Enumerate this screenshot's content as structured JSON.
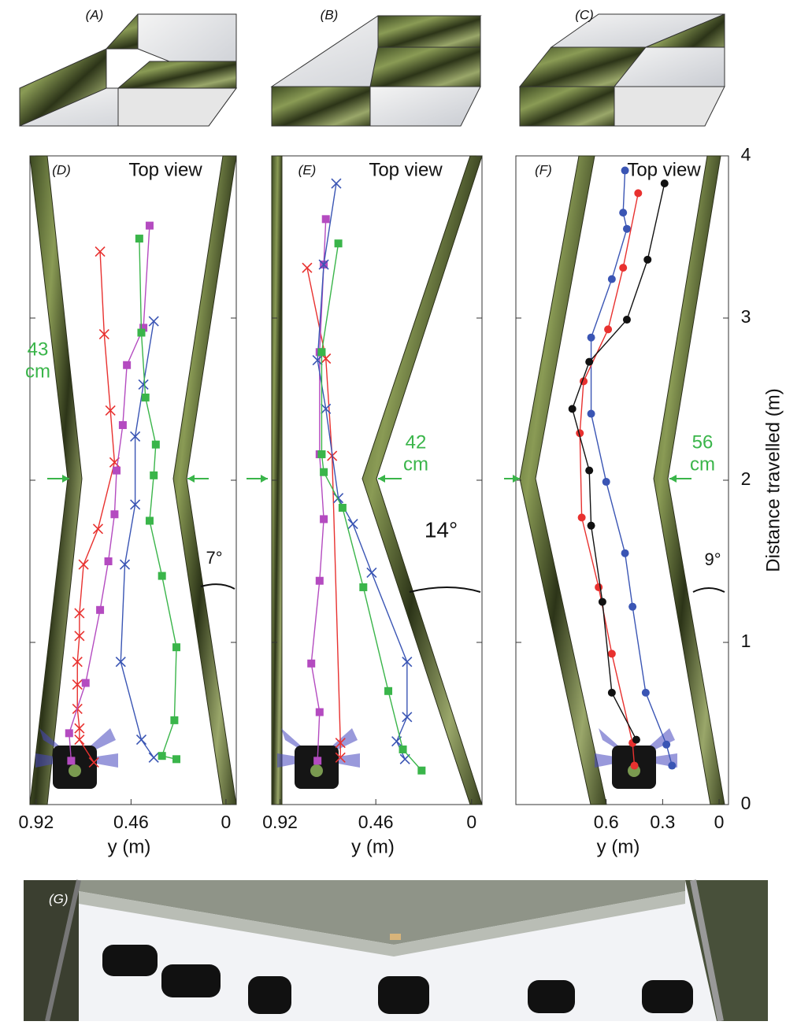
{
  "figure": {
    "panel_labels": [
      "(A)",
      "(B)",
      "(C)"
    ],
    "photo_label": "(G)"
  },
  "chart_data": [
    {
      "type": "line",
      "panel_label": "(D)",
      "annotation": "Top view",
      "width_label": [
        "43",
        "cm"
      ],
      "angle_label": "7°",
      "xlabel": "y (m)",
      "xlim": [
        0.95,
        -0.05
      ],
      "xticks": [
        0.92,
        0.46,
        0
      ],
      "ylim": [
        0,
        4
      ],
      "series": [
        {
          "color": "#e8312f",
          "marker": "x",
          "x": [
            0.61,
            0.59,
            0.56,
            0.54,
            0.62,
            0.69,
            0.71,
            0.71,
            0.72,
            0.72,
            0.72,
            0.71,
            0.71,
            0.64
          ],
          "y": [
            3.41,
            2.9,
            2.43,
            2.11,
            1.7,
            1.48,
            1.18,
            1.04,
            0.88,
            0.74,
            0.59,
            0.47,
            0.4,
            0.26
          ]
        },
        {
          "color": "#b44bc0",
          "marker": "square",
          "x": [
            0.37,
            0.4,
            0.48,
            0.5,
            0.53,
            0.54,
            0.57,
            0.61,
            0.68,
            0.76,
            0.75
          ],
          "y": [
            3.57,
            2.94,
            2.71,
            2.34,
            2.06,
            1.79,
            1.5,
            1.2,
            0.75,
            0.44,
            0.27
          ]
        },
        {
          "color": "#3a55b4",
          "marker": "x",
          "x": [
            0.35,
            0.4,
            0.44,
            0.44,
            0.49,
            0.51,
            0.41,
            0.35
          ],
          "y": [
            2.98,
            2.59,
            2.27,
            1.85,
            1.48,
            0.88,
            0.4,
            0.29
          ]
        },
        {
          "color": "#3ab54a",
          "marker": "square",
          "x": [
            0.42,
            0.41,
            0.39,
            0.34,
            0.35,
            0.37,
            0.31,
            0.24,
            0.25,
            0.31,
            0.24
          ],
          "y": [
            3.49,
            2.91,
            2.51,
            2.22,
            2.03,
            1.75,
            1.41,
            0.97,
            0.52,
            0.3,
            0.28
          ]
        }
      ]
    },
    {
      "type": "line",
      "panel_label": "(E)",
      "annotation": "Top view",
      "width_label": [
        "42",
        "cm"
      ],
      "angle_label": "14°",
      "xlabel": "y (m)",
      "xlim": [
        0.96,
        -0.05
      ],
      "xticks": [
        0.92,
        0.46,
        0
      ],
      "ylim": [
        0,
        4
      ],
      "series": [
        {
          "color": "#e8312f",
          "marker": "x",
          "x": [
            0.79,
            0.7,
            0.67,
            0.63,
            0.63
          ],
          "y": [
            3.31,
            2.75,
            2.15,
            0.38,
            0.29
          ]
        },
        {
          "color": "#b44bc0",
          "marker": "square",
          "x": [
            0.7,
            0.71,
            0.73,
            0.73,
            0.71,
            0.73,
            0.77,
            0.73,
            0.74
          ],
          "y": [
            3.61,
            3.33,
            2.79,
            2.16,
            1.76,
            1.38,
            0.87,
            0.57,
            0.27
          ]
        },
        {
          "color": "#3a55b4",
          "marker": "x",
          "x": [
            0.65,
            0.71,
            0.74,
            0.7,
            0.64,
            0.57,
            0.48,
            0.31,
            0.31,
            0.36,
            0.32
          ],
          "y": [
            3.83,
            3.33,
            2.74,
            2.44,
            1.89,
            1.73,
            1.43,
            0.88,
            0.54,
            0.39,
            0.28
          ]
        },
        {
          "color": "#3ab54a",
          "marker": "square",
          "x": [
            0.64,
            0.72,
            0.72,
            0.71,
            0.62,
            0.52,
            0.4,
            0.33,
            0.24
          ],
          "y": [
            3.46,
            2.79,
            2.16,
            2.05,
            1.83,
            1.34,
            0.7,
            0.34,
            0.21
          ]
        }
      ]
    },
    {
      "type": "line",
      "panel_label": "(F)",
      "annotation": "Top view",
      "width_label": [
        "56",
        "cm"
      ],
      "angle_label": "9°",
      "xlabel": "y (m)",
      "ylabel": "Distance travelled (m)",
      "xlim": [
        1.08,
        -0.05
      ],
      "xticks": [
        0.6,
        0.3,
        0
      ],
      "ylim": [
        0,
        4
      ],
      "yticks": [
        0,
        1,
        2,
        3,
        4
      ],
      "series": [
        {
          "color": "#3a55b4",
          "marker": "circle",
          "x": [
            0.5,
            0.51,
            0.49,
            0.57,
            0.68,
            0.68,
            0.6,
            0.5,
            0.46,
            0.39,
            0.28,
            0.25
          ],
          "y": [
            3.91,
            3.65,
            3.55,
            3.24,
            2.88,
            2.41,
            1.99,
            1.55,
            1.22,
            0.69,
            0.37,
            0.24
          ]
        },
        {
          "color": "#e8312f",
          "marker": "circle",
          "x": [
            0.43,
            0.51,
            0.59,
            0.72,
            0.74,
            0.73,
            0.64,
            0.57,
            0.46,
            0.45
          ],
          "y": [
            3.77,
            3.31,
            2.93,
            2.61,
            2.29,
            1.77,
            1.34,
            0.93,
            0.38,
            0.24
          ]
        },
        {
          "color": "#111111",
          "marker": "circle",
          "x": [
            0.29,
            0.38,
            0.49,
            0.69,
            0.78,
            0.69,
            0.68,
            0.62,
            0.57,
            0.44
          ],
          "y": [
            3.83,
            3.36,
            2.99,
            2.73,
            2.44,
            2.06,
            1.72,
            1.25,
            0.69,
            0.4
          ]
        }
      ]
    }
  ]
}
